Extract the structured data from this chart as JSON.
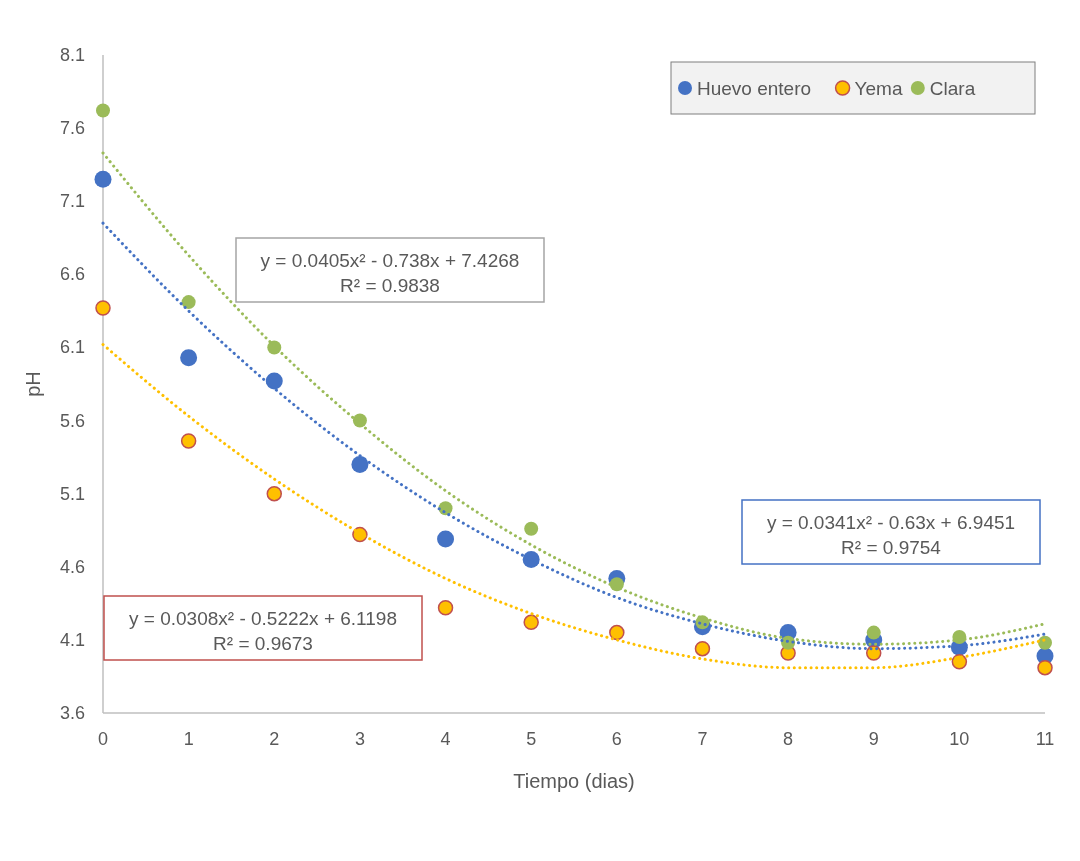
{
  "chart_data": {
    "type": "scatter",
    "xlabel": "Tiempo (dias)",
    "ylabel": "pH",
    "xlim": [
      0,
      11
    ],
    "xticks": [
      0,
      1,
      2,
      3,
      4,
      5,
      6,
      7,
      8,
      9,
      10,
      11
    ],
    "ylim": [
      3.6,
      8.1
    ],
    "yticks": [
      3.6,
      4.1,
      4.6,
      5.1,
      5.6,
      6.1,
      6.6,
      7.1,
      7.6,
      8.1
    ],
    "legend": "top right",
    "marker": "circle",
    "x": [
      0,
      1,
      2,
      3,
      4,
      5,
      6,
      7,
      8,
      9,
      10,
      11
    ],
    "series": [
      {
        "name": "Huevo entero",
        "color": "#4472c4",
        "values": [
          7.25,
          6.03,
          5.87,
          5.3,
          4.79,
          4.65,
          4.52,
          4.19,
          4.15,
          4.1,
          4.05,
          3.99
        ]
      },
      {
        "name": "Yema",
        "color": "#ffc000",
        "values": [
          6.37,
          5.46,
          5.1,
          4.82,
          4.32,
          4.22,
          4.15,
          4.04,
          4.01,
          4.01,
          3.95,
          3.91
        ]
      },
      {
        "name": "Clara",
        "color": "#9bbb59",
        "values": [
          7.72,
          6.41,
          6.1,
          5.6,
          5.0,
          4.86,
          4.48,
          4.22,
          4.08,
          4.15,
          4.12,
          4.08
        ]
      },
      {
        "type": "line",
        "color": "#4472c4",
        "line_style": "dotted",
        "marker": "none",
        "values": [
          6.95,
          6.35,
          5.82,
          5.36,
          4.97,
          4.65,
          4.39,
          4.21,
          4.09,
          4.04,
          4.06,
          4.14
        ]
      },
      {
        "type": "line",
        "color": "#ffc000",
        "line_style": "dotted",
        "marker": "none",
        "values": [
          6.12,
          5.63,
          5.2,
          4.83,
          4.52,
          4.28,
          4.1,
          3.97,
          3.91,
          3.91,
          3.98,
          4.1
        ]
      },
      {
        "type": "line",
        "color": "#9bbb59",
        "line_style": "dotted",
        "marker": "none",
        "values": [
          7.43,
          6.73,
          6.11,
          5.58,
          5.12,
          4.75,
          4.46,
          4.25,
          4.11,
          4.07,
          4.1,
          4.21
        ]
      }
    ],
    "annotations": [
      "y = 0.0405x² - 0.738x + 7.4268",
      "R² = 0.9838",
      "y = 0.0341x² - 0.63x + 6.9451",
      "R² = 0.9754",
      "y = 0.0308x² - 0.5222x + 6.1198",
      "R² = 0.9673"
    ]
  }
}
